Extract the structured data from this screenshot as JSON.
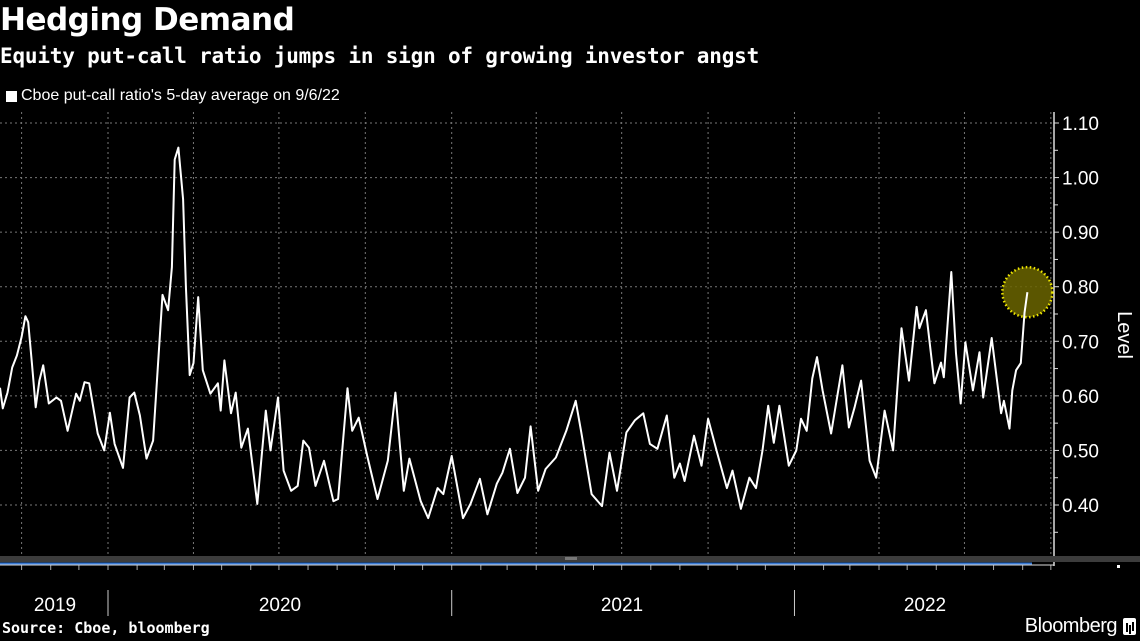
{
  "header": {
    "title": "Hedging Demand",
    "subtitle": "Equity put-call ratio jumps in sign of growing investor angst"
  },
  "footer": {
    "source": "Source: Cboe, bloomberg",
    "brand": "Bloomberg"
  },
  "chart_data": {
    "type": "line",
    "title": "Hedging Demand",
    "subtitle": "Equity put-call ratio jumps in sign of growing investor angst",
    "ylabel": "Level",
    "xlabel": "",
    "ylim": [
      0.35,
      1.12
    ],
    "xlim": [
      "2019-09-08",
      "2022-09-06"
    ],
    "y_ticks": [
      "0.40",
      "0.50",
      "0.60",
      "0.70",
      "0.80",
      "0.90",
      "1.00",
      "1.10"
    ],
    "x_tick_labels": [
      "2019",
      "2020",
      "2021",
      "2022"
    ],
    "y_axis_position": "right",
    "grid": true,
    "legend_position": "top-left",
    "colors": {
      "background": "#000000",
      "line": "#ffffff",
      "highlight_fill": "#6b6500",
      "highlight_stroke": "#f0e800",
      "scrollbar": "#3a7bd5"
    },
    "highlight": {
      "date": "2022-09-06",
      "value": 0.79
    },
    "series": [
      {
        "name": "Cboe put-call ratio's 5-day average on 9/6/22",
        "points": [
          [
            "2019-09-08",
            0.615
          ],
          [
            "2019-09-11",
            0.577
          ],
          [
            "2019-09-16",
            0.606
          ],
          [
            "2019-09-21",
            0.652
          ],
          [
            "2019-09-26",
            0.674
          ],
          [
            "2019-10-01",
            0.708
          ],
          [
            "2019-10-05",
            0.746
          ],
          [
            "2019-10-08",
            0.735
          ],
          [
            "2019-10-12",
            0.66
          ],
          [
            "2019-10-16",
            0.579
          ],
          [
            "2019-10-20",
            0.628
          ],
          [
            "2019-10-24",
            0.656
          ],
          [
            "2019-10-30",
            0.586
          ],
          [
            "2019-11-07",
            0.597
          ],
          [
            "2019-11-12",
            0.591
          ],
          [
            "2019-11-19",
            0.536
          ],
          [
            "2019-11-28",
            0.604
          ],
          [
            "2019-12-02",
            0.591
          ],
          [
            "2019-12-07",
            0.625
          ],
          [
            "2019-12-12",
            0.623
          ],
          [
            "2019-12-16",
            0.582
          ],
          [
            "2019-12-21",
            0.531
          ],
          [
            "2019-12-28",
            0.5
          ],
          [
            "2020-01-03",
            0.569
          ],
          [
            "2020-01-08",
            0.512
          ],
          [
            "2020-01-17",
            0.468
          ],
          [
            "2020-01-24",
            0.597
          ],
          [
            "2020-01-29",
            0.606
          ],
          [
            "2020-02-04",
            0.564
          ],
          [
            "2020-02-11",
            0.485
          ],
          [
            "2020-02-18",
            0.518
          ],
          [
            "2020-02-23",
            0.652
          ],
          [
            "2020-02-28",
            0.785
          ],
          [
            "2020-03-05",
            0.757
          ],
          [
            "2020-03-09",
            0.836
          ],
          [
            "2020-03-12",
            1.033
          ],
          [
            "2020-03-16",
            1.055
          ],
          [
            "2020-03-21",
            0.96
          ],
          [
            "2020-03-24",
            0.8
          ],
          [
            "2020-03-28",
            0.638
          ],
          [
            "2020-04-01",
            0.66
          ],
          [
            "2020-04-06",
            0.781
          ],
          [
            "2020-04-11",
            0.647
          ],
          [
            "2020-04-19",
            0.604
          ],
          [
            "2020-04-27",
            0.623
          ],
          [
            "2020-04-30",
            0.573
          ],
          [
            "2020-05-04",
            0.665
          ],
          [
            "2020-05-11",
            0.568
          ],
          [
            "2020-05-16",
            0.606
          ],
          [
            "2020-05-22",
            0.505
          ],
          [
            "2020-05-29",
            0.54
          ],
          [
            "2020-06-08",
            0.402
          ],
          [
            "2020-06-17",
            0.573
          ],
          [
            "2020-06-22",
            0.5
          ],
          [
            "2020-06-30",
            0.597
          ],
          [
            "2020-07-06",
            0.463
          ],
          [
            "2020-07-14",
            0.426
          ],
          [
            "2020-07-21",
            0.435
          ],
          [
            "2020-07-27",
            0.518
          ],
          [
            "2020-08-02",
            0.505
          ],
          [
            "2020-08-09",
            0.435
          ],
          [
            "2020-08-18",
            0.481
          ],
          [
            "2020-08-28",
            0.407
          ],
          [
            "2020-09-02",
            0.411
          ],
          [
            "2020-09-12",
            0.614
          ],
          [
            "2020-09-17",
            0.536
          ],
          [
            "2020-09-24",
            0.56
          ],
          [
            "2020-10-03",
            0.49
          ],
          [
            "2020-10-14",
            0.411
          ],
          [
            "2020-10-25",
            0.481
          ],
          [
            "2020-11-02",
            0.606
          ],
          [
            "2020-11-11",
            0.426
          ],
          [
            "2020-11-17",
            0.485
          ],
          [
            "2020-11-29",
            0.407
          ],
          [
            "2020-12-07",
            0.376
          ],
          [
            "2020-12-17",
            0.431
          ],
          [
            "2020-12-23",
            0.42
          ],
          [
            "2021-01-01",
            0.49
          ],
          [
            "2021-01-13",
            0.376
          ],
          [
            "2021-01-21",
            0.402
          ],
          [
            "2021-01-31",
            0.448
          ],
          [
            "2021-02-08",
            0.383
          ],
          [
            "2021-02-18",
            0.439
          ],
          [
            "2021-02-24",
            0.459
          ],
          [
            "2021-03-04",
            0.503
          ],
          [
            "2021-03-12",
            0.422
          ],
          [
            "2021-03-20",
            0.45
          ],
          [
            "2021-03-26",
            0.544
          ],
          [
            "2021-04-03",
            0.426
          ],
          [
            "2021-04-11",
            0.466
          ],
          [
            "2021-04-22",
            0.487
          ],
          [
            "2021-05-03",
            0.536
          ],
          [
            "2021-05-13",
            0.591
          ],
          [
            "2021-05-19",
            0.533
          ],
          [
            "2021-05-30",
            0.42
          ],
          [
            "2021-06-10",
            0.398
          ],
          [
            "2021-06-18",
            0.496
          ],
          [
            "2021-06-26",
            0.426
          ],
          [
            "2021-07-06",
            0.533
          ],
          [
            "2021-07-15",
            0.555
          ],
          [
            "2021-07-24",
            0.568
          ],
          [
            "2021-07-31",
            0.512
          ],
          [
            "2021-08-08",
            0.503
          ],
          [
            "2021-08-18",
            0.564
          ],
          [
            "2021-08-26",
            0.45
          ],
          [
            "2021-09-01",
            0.476
          ],
          [
            "2021-09-06",
            0.444
          ],
          [
            "2021-09-16",
            0.527
          ],
          [
            "2021-09-24",
            0.472
          ],
          [
            "2021-10-01",
            0.558
          ],
          [
            "2021-10-10",
            0.5
          ],
          [
            "2021-10-21",
            0.431
          ],
          [
            "2021-10-27",
            0.463
          ],
          [
            "2021-11-05",
            0.393
          ],
          [
            "2021-11-14",
            0.45
          ],
          [
            "2021-11-21",
            0.431
          ],
          [
            "2021-11-28",
            0.5
          ],
          [
            "2021-12-04",
            0.582
          ],
          [
            "2021-12-10",
            0.514
          ],
          [
            "2021-12-16",
            0.582
          ],
          [
            "2021-12-26",
            0.472
          ],
          [
            "2022-01-03",
            0.5
          ],
          [
            "2022-01-08",
            0.558
          ],
          [
            "2022-01-14",
            0.536
          ],
          [
            "2022-01-20",
            0.632
          ],
          [
            "2022-01-25",
            0.671
          ],
          [
            "2022-01-31",
            0.61
          ],
          [
            "2022-02-09",
            0.531
          ],
          [
            "2022-02-21",
            0.656
          ],
          [
            "2022-02-28",
            0.542
          ],
          [
            "2022-03-06",
            0.579
          ],
          [
            "2022-03-13",
            0.628
          ],
          [
            "2022-03-22",
            0.481
          ],
          [
            "2022-03-29",
            0.45
          ],
          [
            "2022-04-07",
            0.573
          ],
          [
            "2022-04-16",
            0.5
          ],
          [
            "2022-04-25",
            0.724
          ],
          [
            "2022-05-03",
            0.628
          ],
          [
            "2022-05-11",
            0.763
          ],
          [
            "2022-05-14",
            0.724
          ],
          [
            "2022-05-21",
            0.757
          ],
          [
            "2022-05-30",
            0.623
          ],
          [
            "2022-06-06",
            0.661
          ],
          [
            "2022-06-09",
            0.634
          ],
          [
            "2022-06-17",
            0.827
          ],
          [
            "2022-06-22",
            0.678
          ],
          [
            "2022-06-27",
            0.586
          ],
          [
            "2022-07-02",
            0.698
          ],
          [
            "2022-07-10",
            0.61
          ],
          [
            "2022-07-17",
            0.68
          ],
          [
            "2022-07-21",
            0.597
          ],
          [
            "2022-07-30",
            0.706
          ],
          [
            "2022-08-09",
            0.568
          ],
          [
            "2022-08-12",
            0.591
          ],
          [
            "2022-08-18",
            0.54
          ],
          [
            "2022-08-21",
            0.61
          ],
          [
            "2022-08-25",
            0.647
          ],
          [
            "2022-08-30",
            0.66
          ],
          [
            "2022-09-03",
            0.752
          ],
          [
            "2022-09-06",
            0.79
          ]
        ]
      }
    ]
  }
}
